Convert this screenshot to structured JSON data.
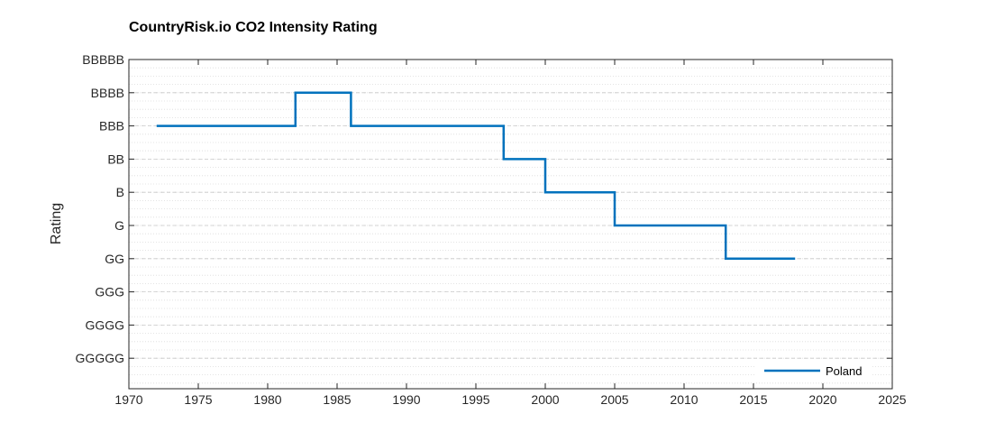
{
  "chart_data": {
    "type": "line",
    "step": true,
    "title": "CountryRisk.io CO2 Intensity Rating",
    "xlabel": "",
    "ylabel": "Rating",
    "xlim": [
      1970,
      2025
    ],
    "xticks": [
      "1970",
      "1975",
      "1980",
      "1985",
      "1990",
      "1995",
      "2000",
      "2005",
      "2010",
      "2015",
      "2020",
      "2025"
    ],
    "xtick_values": [
      1970,
      1975,
      1980,
      1985,
      1990,
      1995,
      2000,
      2005,
      2010,
      2015,
      2020,
      2025
    ],
    "categories_y": [
      "GGGGG",
      "GGGG",
      "GGG",
      "GG",
      "G",
      "B",
      "BB",
      "BBB",
      "BBBB",
      "BBBBB"
    ],
    "grid": true,
    "minor_grid": true,
    "legend_position": "bottom-right",
    "series": [
      {
        "name": "Poland",
        "color": "#0072BD",
        "x": [
          1972,
          1982,
          1982,
          1986,
          1986,
          1997,
          1997,
          2000,
          2000,
          2005,
          2005,
          2013,
          2013,
          2018
        ],
        "y": [
          "BBB",
          "BBB",
          "BBBB",
          "BBBB",
          "BBB",
          "BBB",
          "BB",
          "BB",
          "B",
          "B",
          "G",
          "G",
          "GG",
          "GG"
        ]
      }
    ]
  }
}
